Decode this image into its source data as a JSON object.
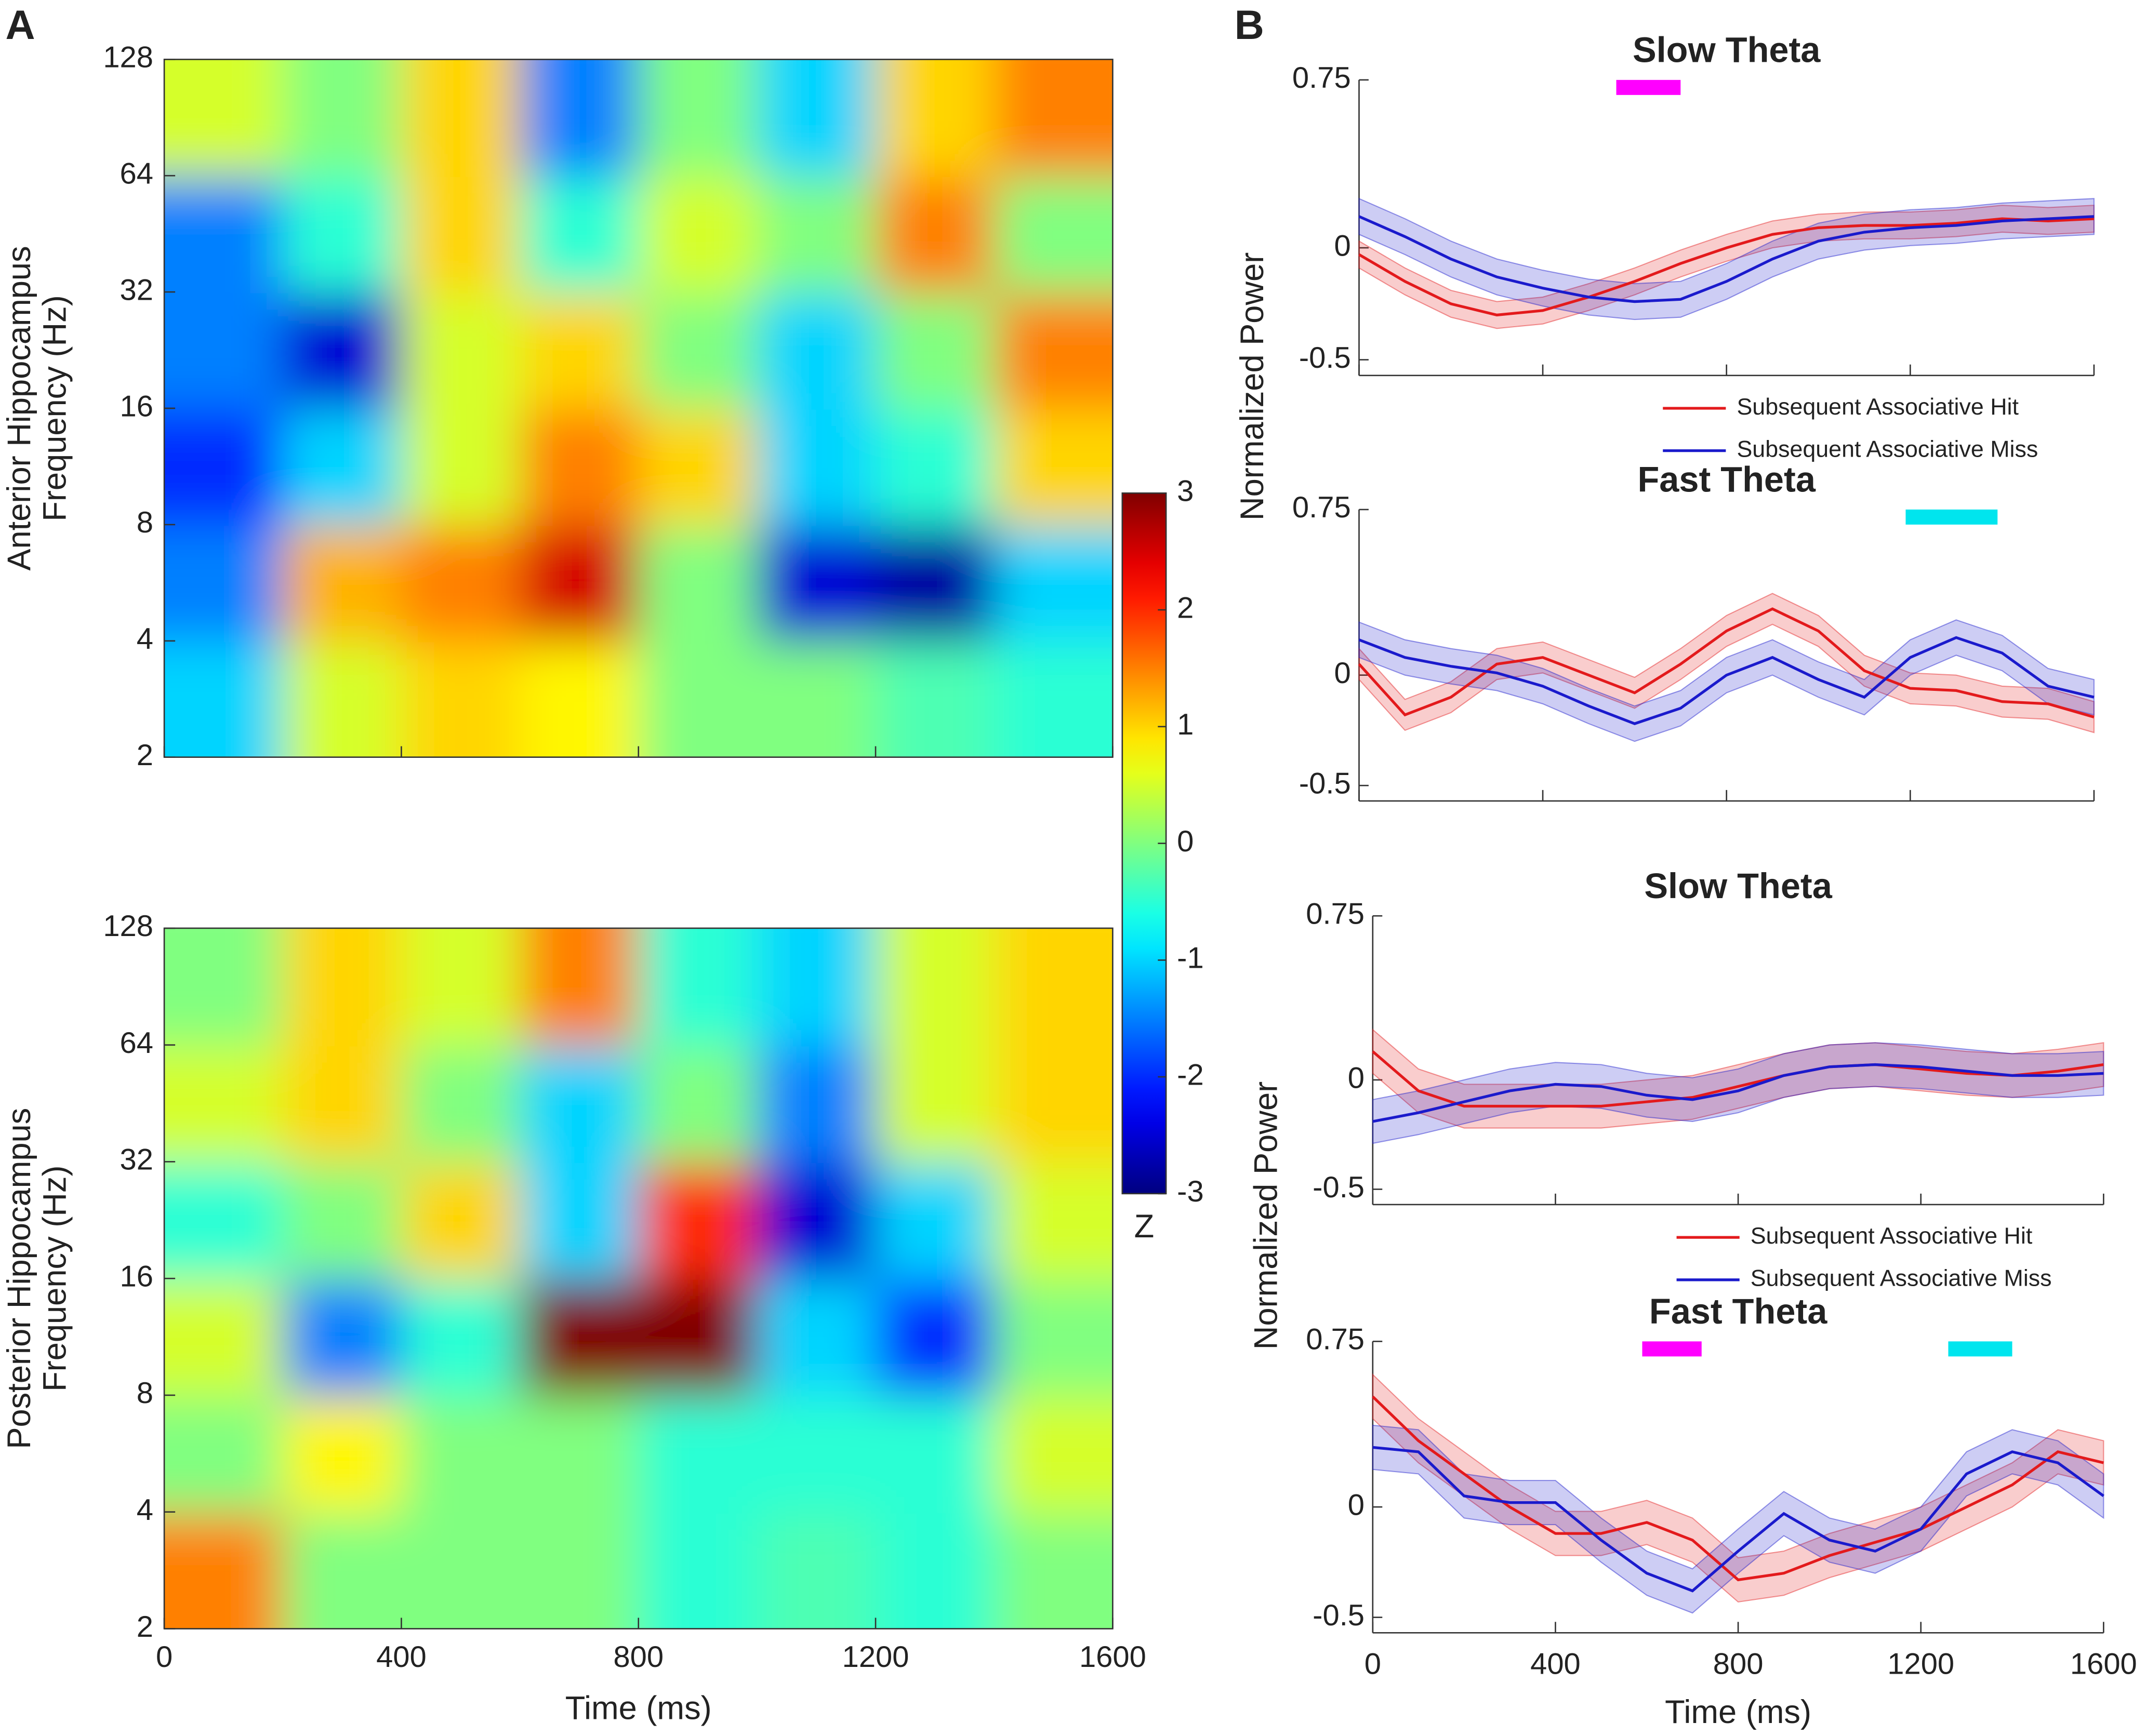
{
  "panel_labels": [
    "A",
    "B"
  ],
  "chart_data": [
    {
      "type": "heatmap",
      "ylabel": [
        "Anterior Hippocampus",
        "Frequency (Hz)"
      ],
      "xlim": [
        0,
        1600
      ],
      "xticks": [
        0,
        400,
        800,
        1200,
        1600
      ],
      "xtick_labels": false,
      "ylim": [
        2,
        128
      ],
      "yticks": [
        2,
        4,
        8,
        16,
        32,
        64,
        128
      ],
      "log_y": true,
      "time_edges": [
        0,
        200,
        400,
        600,
        800,
        1000,
        1200,
        1400,
        1600
      ],
      "freq_edges": [
        2,
        4,
        8,
        16,
        32,
        64,
        128
      ],
      "z": [
        [
          -1,
          0.5,
          1,
          0.8,
          0,
          0,
          -0.3,
          -0.5
        ],
        [
          -1.5,
          1.2,
          1.5,
          2.5,
          0,
          -2.5,
          -2.8,
          -1
        ],
        [
          -2,
          -1,
          0.5,
          1.5,
          1,
          -1,
          -0.5,
          1
        ],
        [
          -1.5,
          -2.5,
          0.5,
          1,
          0,
          -1,
          0,
          1.5
        ],
        [
          -1.5,
          -0.5,
          1,
          -0.5,
          0.5,
          0,
          1.5,
          0
        ],
        [
          0.5,
          0,
          1,
          -1.5,
          0,
          -1,
          1,
          1.5
        ]
      ]
    },
    {
      "type": "heatmap",
      "ylabel": [
        "Posterior Hippocampus",
        "Frequency (Hz)"
      ],
      "xlabel": "Time (ms)",
      "xlim": [
        0,
        1600
      ],
      "xticks": [
        0,
        400,
        800,
        1200,
        1600
      ],
      "xtick_labels": true,
      "ylim": [
        2,
        128
      ],
      "yticks": [
        2,
        4,
        8,
        16,
        32,
        64,
        128
      ],
      "log_y": true,
      "time_edges": [
        0,
        200,
        400,
        600,
        800,
        1000,
        1200,
        1400,
        1600
      ],
      "freq_edges": [
        2,
        4,
        8,
        16,
        32,
        64,
        128
      ],
      "z": [
        [
          1.5,
          0,
          0,
          0,
          -0.5,
          -0.3,
          -0.5,
          0
        ],
        [
          0,
          0.8,
          0,
          0,
          -0.5,
          -0.5,
          -0.5,
          0.5
        ],
        [
          0.5,
          -1.5,
          -0.5,
          3,
          3,
          -1,
          -2,
          0
        ],
        [
          -0.5,
          0,
          1,
          -1,
          2,
          -2.5,
          -1,
          0.5
        ],
        [
          0.5,
          1,
          0,
          -1,
          0,
          -1.5,
          0.5,
          1
        ],
        [
          0,
          1,
          0.5,
          1.5,
          -0.5,
          -1,
          0.5,
          1
        ]
      ]
    },
    {
      "type": "colorbar",
      "clim": [
        -3,
        3
      ],
      "ticks": [
        -3,
        -2,
        -1,
        0,
        1,
        2,
        3
      ],
      "label": "Z"
    },
    {
      "type": "line",
      "title": "Slow Theta",
      "ylabel": "Normalized Power",
      "legend": true,
      "xtick_labels": false,
      "xlim": [
        0,
        1600
      ],
      "xticks": [
        0,
        400,
        800,
        1200,
        1600
      ],
      "ylim": [
        -0.57,
        0.75
      ],
      "yticks": [
        -0.5,
        0,
        0.75
      ],
      "x": [
        0,
        100,
        200,
        300,
        400,
        500,
        600,
        700,
        800,
        900,
        1000,
        1100,
        1200,
        1300,
        1400,
        1500,
        1600
      ],
      "series": [
        {
          "name": "Subsequent Associative Hit",
          "color": "#e31a1c",
          "values": [
            -0.03,
            -0.15,
            -0.25,
            -0.3,
            -0.28,
            -0.22,
            -0.15,
            -0.07,
            0,
            0.06,
            0.09,
            0.1,
            0.1,
            0.11,
            0.13,
            0.12,
            0.13
          ],
          "errors": [
            0.06,
            0.06,
            0.06,
            0.06,
            0.06,
            0.06,
            0.06,
            0.06,
            0.06,
            0.06,
            0.06,
            0.06,
            0.06,
            0.06,
            0.06,
            0.06,
            0.06
          ]
        },
        {
          "name": "Subsequent Associative Miss",
          "color": "#1a1acc",
          "values": [
            0.14,
            0.05,
            -0.05,
            -0.13,
            -0.18,
            -0.22,
            -0.24,
            -0.23,
            -0.15,
            -0.05,
            0.03,
            0.07,
            0.09,
            0.1,
            0.12,
            0.13,
            0.14
          ],
          "errors": [
            0.08,
            0.08,
            0.08,
            0.08,
            0.08,
            0.08,
            0.08,
            0.08,
            0.08,
            0.08,
            0.08,
            0.08,
            0.08,
            0.08,
            0.08,
            0.08,
            0.08
          ]
        }
      ],
      "sig_bars": [
        {
          "color": "#ff00ff",
          "x": [
            560,
            700
          ]
        }
      ]
    },
    {
      "type": "line",
      "title": "Fast Theta",
      "legend": false,
      "xtick_labels": false,
      "xlim": [
        0,
        1600
      ],
      "xticks": [
        0,
        400,
        800,
        1200,
        1600
      ],
      "ylim": [
        -0.57,
        0.75
      ],
      "yticks": [
        -0.5,
        0,
        0.75
      ],
      "x": [
        0,
        100,
        200,
        300,
        400,
        500,
        600,
        700,
        800,
        900,
        1000,
        1100,
        1200,
        1300,
        1400,
        1500,
        1600
      ],
      "series": [
        {
          "name": "Subsequent Associative Hit",
          "color": "#e31a1c",
          "values": [
            0.05,
            -0.18,
            -0.1,
            0.05,
            0.08,
            0,
            -0.08,
            0.05,
            0.2,
            0.3,
            0.2,
            0.02,
            -0.06,
            -0.07,
            -0.12,
            -0.13,
            -0.19
          ],
          "errors": [
            0.07,
            0.07,
            0.07,
            0.07,
            0.07,
            0.07,
            0.07,
            0.07,
            0.07,
            0.07,
            0.07,
            0.07,
            0.07,
            0.07,
            0.07,
            0.07,
            0.07
          ]
        },
        {
          "name": "Subsequent Associative Miss",
          "color": "#1a1acc",
          "values": [
            0.16,
            0.08,
            0.04,
            0.01,
            -0.05,
            -0.14,
            -0.22,
            -0.15,
            0,
            0.08,
            -0.02,
            -0.1,
            0.08,
            0.17,
            0.1,
            -0.05,
            -0.1
          ],
          "errors": [
            0.08,
            0.08,
            0.08,
            0.08,
            0.08,
            0.08,
            0.08,
            0.08,
            0.08,
            0.08,
            0.08,
            0.08,
            0.08,
            0.08,
            0.08,
            0.08,
            0.08
          ]
        }
      ],
      "sig_bars": [
        {
          "color": "#00e5ee",
          "x": [
            1190,
            1390
          ]
        }
      ]
    },
    {
      "type": "line",
      "title": "Slow Theta",
      "ylabel": "Normalized Power",
      "legend": true,
      "xtick_labels": false,
      "xlim": [
        0,
        1600
      ],
      "xticks": [
        0,
        400,
        800,
        1200,
        1600
      ],
      "ylim": [
        -0.57,
        0.75
      ],
      "yticks": [
        -0.5,
        0,
        0.75
      ],
      "x": [
        0,
        100,
        200,
        300,
        400,
        500,
        600,
        700,
        800,
        900,
        1000,
        1100,
        1200,
        1300,
        1400,
        1500,
        1600
      ],
      "series": [
        {
          "name": "Subsequent Associative Hit",
          "color": "#e31a1c",
          "values": [
            0.13,
            -0.05,
            -0.12,
            -0.12,
            -0.12,
            -0.12,
            -0.1,
            -0.08,
            -0.03,
            0.02,
            0.06,
            0.07,
            0.05,
            0.03,
            0.02,
            0.04,
            0.07
          ],
          "errors": [
            0.1,
            0.1,
            0.1,
            0.1,
            0.1,
            0.1,
            0.1,
            0.1,
            0.1,
            0.1,
            0.1,
            0.1,
            0.1,
            0.1,
            0.1,
            0.1,
            0.1
          ]
        },
        {
          "name": "Subsequent Associative Miss",
          "color": "#1a1acc",
          "values": [
            -0.19,
            -0.15,
            -0.1,
            -0.05,
            -0.02,
            -0.03,
            -0.07,
            -0.09,
            -0.05,
            0.02,
            0.06,
            0.07,
            0.06,
            0.04,
            0.02,
            0.02,
            0.03
          ],
          "errors": [
            0.1,
            0.1,
            0.1,
            0.1,
            0.1,
            0.1,
            0.1,
            0.1,
            0.1,
            0.1,
            0.1,
            0.1,
            0.1,
            0.1,
            0.1,
            0.1,
            0.1
          ]
        }
      ],
      "sig_bars": []
    },
    {
      "type": "line",
      "title": "Fast Theta",
      "xlabel": "Time (ms)",
      "legend": false,
      "xtick_labels": true,
      "xlim": [
        0,
        1600
      ],
      "xticks": [
        0,
        400,
        800,
        1200,
        1600
      ],
      "ylim": [
        -0.57,
        0.75
      ],
      "yticks": [
        -0.5,
        0,
        0.75
      ],
      "x": [
        0,
        100,
        200,
        300,
        400,
        500,
        600,
        700,
        800,
        900,
        1000,
        1100,
        1200,
        1300,
        1400,
        1500,
        1600
      ],
      "series": [
        {
          "name": "Subsequent Associative Hit",
          "color": "#e31a1c",
          "values": [
            0.5,
            0.3,
            0.15,
            0,
            -0.12,
            -0.12,
            -0.07,
            -0.15,
            -0.33,
            -0.3,
            -0.22,
            -0.16,
            -0.1,
            0,
            0.1,
            0.25,
            0.2
          ],
          "errors": [
            0.1,
            0.1,
            0.1,
            0.1,
            0.1,
            0.1,
            0.1,
            0.1,
            0.1,
            0.1,
            0.1,
            0.1,
            0.1,
            0.1,
            0.1,
            0.1,
            0.1
          ]
        },
        {
          "name": "Subsequent Associative Miss",
          "color": "#1a1acc",
          "values": [
            0.27,
            0.25,
            0.05,
            0.02,
            0.02,
            -0.15,
            -0.3,
            -0.38,
            -0.2,
            -0.03,
            -0.15,
            -0.2,
            -0.1,
            0.15,
            0.25,
            0.2,
            0.05
          ],
          "errors": [
            0.1,
            0.1,
            0.1,
            0.1,
            0.1,
            0.1,
            0.1,
            0.1,
            0.1,
            0.1,
            0.1,
            0.1,
            0.1,
            0.1,
            0.1,
            0.1,
            0.1
          ]
        }
      ],
      "sig_bars": [
        {
          "color": "#ff00ff",
          "x": [
            590,
            720
          ]
        },
        {
          "color": "#00e5ee",
          "x": [
            1260,
            1400
          ]
        }
      ]
    }
  ]
}
